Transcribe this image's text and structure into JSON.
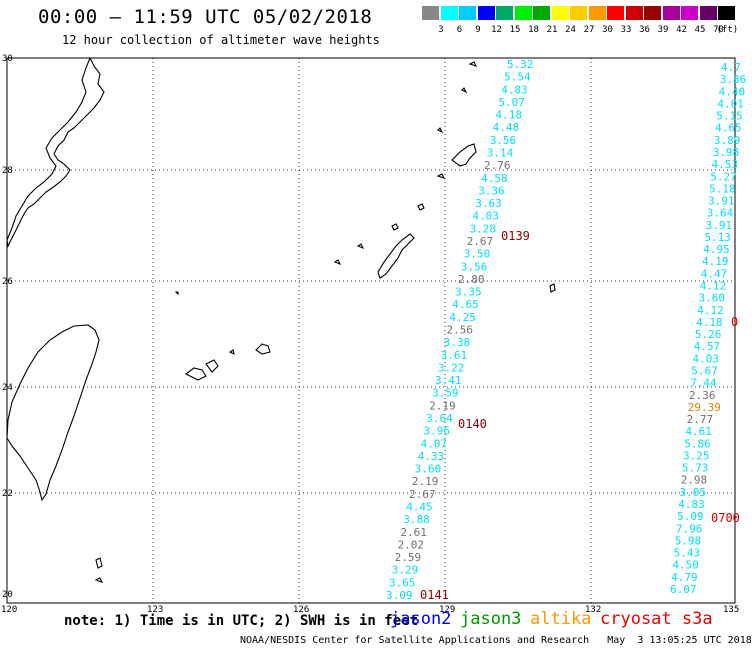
{
  "header": {
    "title": "00:00 – 11:59 UTC 05/02/2018",
    "subtitle": "12 hour collection of altimeter wave heights"
  },
  "legend": {
    "unit": "(ft)",
    "bins": [
      {
        "label": "",
        "color": "#888888"
      },
      {
        "label": "3",
        "color": "#00ffff"
      },
      {
        "label": "6",
        "color": "#00ccff"
      },
      {
        "label": "9",
        "color": "#0000ff"
      },
      {
        "label": "12",
        "color": "#00aa66"
      },
      {
        "label": "15",
        "color": "#00ee00"
      },
      {
        "label": "18",
        "color": "#00aa00"
      },
      {
        "label": "21",
        "color": "#ffff00"
      },
      {
        "label": "24",
        "color": "#ffcc00"
      },
      {
        "label": "27",
        "color": "#ff9900"
      },
      {
        "label": "30",
        "color": "#ff0000"
      },
      {
        "label": "33",
        "color": "#cc0000"
      },
      {
        "label": "36",
        "color": "#990000"
      },
      {
        "label": "39",
        "color": "#aa0099"
      },
      {
        "label": "42",
        "color": "#cc00cc"
      },
      {
        "label": "45",
        "color": "#660066"
      },
      {
        "label": "70",
        "color": "#000000"
      }
    ]
  },
  "axes": {
    "lat_labels": [
      "30",
      "28",
      "26",
      "24",
      "22",
      "20"
    ],
    "lon_labels": [
      "120",
      "123",
      "126",
      "129",
      "132",
      "135"
    ]
  },
  "colors": {
    "cyan": "#00e0ff",
    "gray": "#707070",
    "orange": "#e08000",
    "pass": "#8b0000",
    "pass_red": "#dd0000"
  },
  "track1": {
    "values": [
      "5.32",
      "5.54",
      "4.83",
      "5.07",
      "4.18",
      "4.48",
      "3.56",
      "3.14",
      "2.76",
      "4.58",
      "3.36",
      "3.63",
      "4.03",
      "3.28",
      "2.67",
      "3.50",
      "3.56",
      "2.80",
      "3.35",
      "4.65",
      "4.25",
      "2.56",
      "3.38",
      "3.61",
      "3.22",
      "3.41",
      "3.59",
      "2.19",
      "3.64",
      "3.96",
      "4.07",
      "4.33",
      "3.60",
      "2.19",
      "2.67",
      "4.45",
      "3.88",
      "2.61",
      "2.02",
      "2.59",
      "3.29",
      "3.65",
      "3.09"
    ],
    "colors": [
      "cyan",
      "cyan",
      "cyan",
      "cyan",
      "cyan",
      "cyan",
      "cyan",
      "cyan",
      "gray",
      "cyan",
      "cyan",
      "cyan",
      "cyan",
      "cyan",
      "gray",
      "cyan",
      "cyan",
      "gray",
      "cyan",
      "cyan",
      "cyan",
      "gray",
      "cyan",
      "cyan",
      "cyan",
      "cyan",
      "cyan",
      "gray",
      "cyan",
      "cyan",
      "cyan",
      "cyan",
      "cyan",
      "gray",
      "gray",
      "cyan",
      "cyan",
      "gray",
      "gray",
      "gray",
      "cyan",
      "cyan",
      "cyan"
    ]
  },
  "track2": {
    "values": [
      "4.7",
      "3.86",
      "4.40",
      "4.01",
      "5.15",
      "4.65",
      "3.89",
      "3.98",
      "4.53",
      "5.27",
      "5.18",
      "3.91",
      "3.64",
      "3.91",
      "5.13",
      "4.95",
      "4.19",
      "4.47",
      "4.12",
      "3.60",
      "4.12",
      "4.18",
      "5.26",
      "4.57",
      "4.03",
      "5.67",
      "7.44",
      "2.36",
      "29.39",
      "2.77",
      "4.61",
      "5.86",
      "3.25",
      "5.73",
      "2.98",
      "3.05",
      "4.83",
      "5.09",
      "7.96",
      "5.98",
      "5.43",
      "4.50",
      "4.79",
      "6.07"
    ],
    "colors": [
      "cyan",
      "cyan",
      "cyan",
      "cyan",
      "cyan",
      "cyan",
      "cyan",
      "cyan",
      "cyan",
      "cyan",
      "cyan",
      "cyan",
      "cyan",
      "cyan",
      "cyan",
      "cyan",
      "cyan",
      "cyan",
      "cyan",
      "cyan",
      "cyan",
      "cyan",
      "cyan",
      "cyan",
      "cyan",
      "cyan",
      "cyan",
      "gray",
      "orange",
      "gray",
      "cyan",
      "cyan",
      "cyan",
      "cyan",
      "gray",
      "cyan",
      "cyan",
      "cyan",
      "cyan",
      "cyan",
      "cyan",
      "cyan",
      "cyan",
      "cyan"
    ]
  },
  "passes": {
    "p0139": "0139",
    "p0140": "0140",
    "p0141": "0141",
    "p0": "0",
    "p0700": "0700"
  },
  "note": "note: 1) Time is in UTC; 2) SWH is in feet",
  "satellites": {
    "jason2": {
      "label": "jason2",
      "color": "#0000ee"
    },
    "jason3": {
      "label": "jason3",
      "color": "#009900"
    },
    "altika": {
      "label": "altika",
      "color": "#ff9900"
    },
    "cryosat": {
      "label": "cryosat s3a",
      "color": "#ee0000"
    }
  },
  "credit": "NOAA/NESDIS Center for Satellite Applications and Research   May  3 13:05:25 UTC 2018"
}
